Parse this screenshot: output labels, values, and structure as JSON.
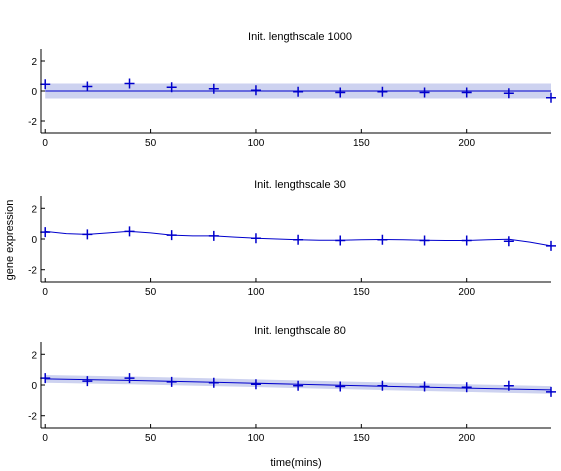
{
  "figure": {
    "ylabel": "gene expression",
    "xlabel": "time(mins)"
  },
  "colors": {
    "line": "#0000cc",
    "band": "#cdd2f0",
    "marker": "#0000cc",
    "axis": "#000000"
  },
  "chart_data": [
    {
      "type": "line",
      "title": "Init. lengthscale 1000",
      "xlim": [
        -2,
        240
      ],
      "ylim": [
        -2.8,
        2.8
      ],
      "xticks": [
        0,
        50,
        100,
        150,
        200
      ],
      "yticks": [
        -2,
        0,
        2
      ],
      "data_points": {
        "x": [
          0,
          20,
          40,
          60,
          80,
          100,
          120,
          140,
          160,
          180,
          200,
          220,
          240
        ],
        "y": [
          0.45,
          0.3,
          0.5,
          0.25,
          0.15,
          0.05,
          -0.05,
          -0.1,
          -0.05,
          -0.1,
          -0.1,
          -0.15,
          -0.45
        ]
      },
      "mean": {
        "x": [
          0,
          240
        ],
        "y": [
          0.0,
          0.0
        ]
      },
      "band": {
        "x": [
          0,
          240
        ],
        "upper": [
          0.5,
          0.5
        ],
        "lower": [
          -0.5,
          -0.5
        ]
      }
    },
    {
      "type": "line",
      "title": "Init. lengthscale 30",
      "xlim": [
        -2,
        240
      ],
      "ylim": [
        -2.8,
        2.8
      ],
      "xticks": [
        0,
        50,
        100,
        150,
        200
      ],
      "yticks": [
        -2,
        0,
        2
      ],
      "data_points": {
        "x": [
          0,
          20,
          40,
          60,
          80,
          100,
          120,
          140,
          160,
          180,
          200,
          220,
          240
        ],
        "y": [
          0.45,
          0.3,
          0.5,
          0.25,
          0.2,
          0.05,
          -0.05,
          -0.1,
          -0.05,
          -0.1,
          -0.1,
          -0.15,
          -0.45
        ]
      },
      "mean": {
        "x": [
          0,
          10,
          20,
          30,
          40,
          50,
          60,
          70,
          80,
          90,
          100,
          110,
          120,
          130,
          140,
          150,
          160,
          170,
          180,
          190,
          200,
          210,
          220,
          230,
          240
        ],
        "y": [
          0.5,
          0.35,
          0.3,
          0.4,
          0.5,
          0.4,
          0.25,
          0.2,
          0.2,
          0.12,
          0.05,
          0.0,
          -0.05,
          -0.08,
          -0.08,
          -0.05,
          -0.03,
          -0.05,
          -0.08,
          -0.1,
          -0.1,
          -0.05,
          -0.02,
          -0.2,
          -0.45
        ]
      },
      "band": null
    },
    {
      "type": "line",
      "title": "Init. lengthscale 80",
      "xlim": [
        -2,
        240
      ],
      "ylim": [
        -2.8,
        2.8
      ],
      "xticks": [
        0,
        50,
        100,
        150,
        200
      ],
      "yticks": [
        -2,
        0,
        2
      ],
      "data_points": {
        "x": [
          0,
          20,
          40,
          60,
          80,
          100,
          120,
          140,
          160,
          180,
          200,
          220,
          240
        ],
        "y": [
          0.45,
          0.25,
          0.45,
          0.2,
          0.15,
          0.05,
          -0.05,
          -0.1,
          -0.05,
          -0.1,
          -0.15,
          -0.05,
          -0.45
        ]
      },
      "mean": {
        "x": [
          0,
          40,
          80,
          120,
          160,
          200,
          240
        ],
        "y": [
          0.4,
          0.3,
          0.18,
          0.05,
          -0.08,
          -0.2,
          -0.32
        ]
      },
      "band": {
        "x": [
          0,
          40,
          80,
          120,
          160,
          200,
          240
        ],
        "upper": [
          0.65,
          0.55,
          0.43,
          0.3,
          0.17,
          0.05,
          -0.07
        ],
        "lower": [
          0.15,
          0.05,
          -0.07,
          -0.2,
          -0.33,
          -0.45,
          -0.57
        ]
      }
    }
  ]
}
